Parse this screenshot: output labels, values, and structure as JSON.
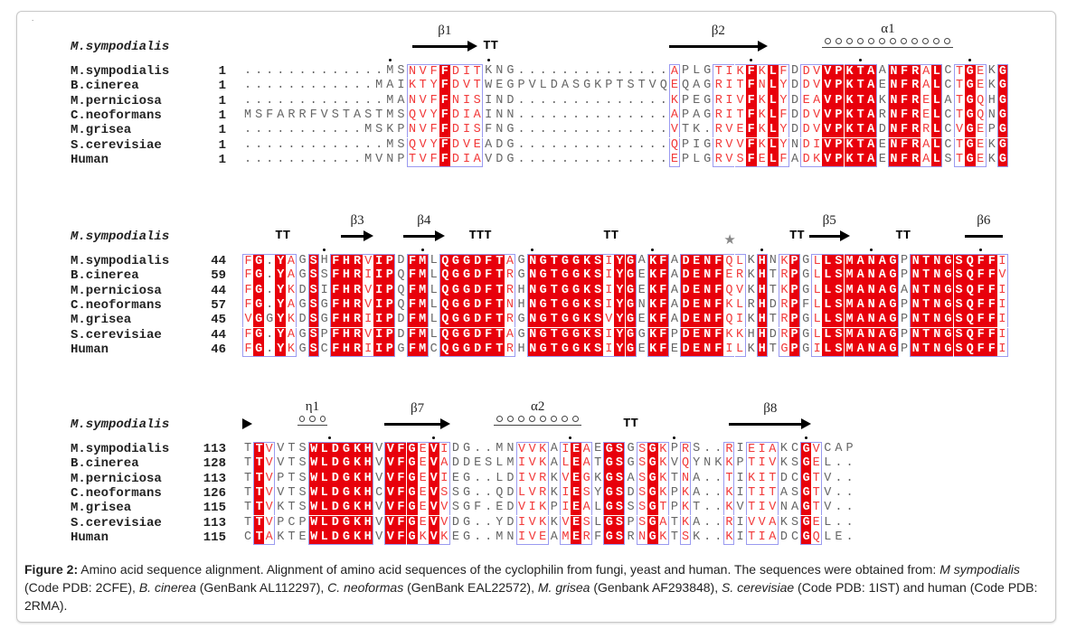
{
  "figure": {
    "corner_mark": ".",
    "header_species": "M.sympodialis",
    "colors": {
      "identical_bg": "#e8000b",
      "similar_text": "#f23a3a",
      "box": "#9a9af0"
    },
    "blocks": [
      {
        "rows": [
          {
            "name": "M.sympodialis",
            "start": "1",
            "seq": ".............MSNVFFDITKNG..............APLGTIKFKLFDDVVPKTAANFRALCTGEKG"
          },
          {
            "name": "B.cinerea",
            "start": "1",
            "seq": "............MAIKTYFDVTWEGPVLDASGKPTSTVQEQAGRITFNLYDDVVPKTAENFRALCTGEKG"
          },
          {
            "name": "M.perniciosa",
            "start": "1",
            "seq": ".............MANVFFNISIND..............KPEGRIVFKLYDEAVPKTAKNFRELATGQHG"
          },
          {
            "name": "C.neoformans",
            "start": "1",
            "seq": "MSFARRFVSTASTMSQVYFDIAINN..............APAGRITFKLFDDVVPKTARNFRELCTGQNG"
          },
          {
            "name": "M.grisea",
            "start": "1",
            "seq": "...........MSKPNVFFDISFNG..............VTK.RVEFKLYDDVVPKTADNFRRLCVGEPG"
          },
          {
            "name": "S.cerevisiae",
            "start": "1",
            "seq": ".............MSQVYFDVEADG..............QPIGRVVFKLYNDIVPKTAENFRALCTGEKG"
          },
          {
            "name": "Human",
            "start": "1",
            "seq": "...........MVNPTVFFDIAVDG..............EPLGRVSFELFADKVPKTAENFRALSTGEKG"
          }
        ],
        "mask": "ppppppppppppppptttRtttppppppppppppppppptppptttRtRtpttRRRRRpRRRtRptRtpR",
        "structure": [
          {
            "type": "arrow",
            "label": "β1",
            "start": 15.5,
            "end": 21.5
          },
          {
            "type": "turn",
            "label": "TT",
            "start": 22
          },
          {
            "type": "arrow",
            "label": "β2",
            "start": 39,
            "end": 48
          },
          {
            "type": "helix",
            "label": "α1",
            "start": 53,
            "end": 65
          },
          {
            "type": "dot",
            "start": 13
          },
          {
            "type": "dot",
            "start": 22
          },
          {
            "type": "dot",
            "start": 46
          },
          {
            "type": "dot",
            "start": 56
          },
          {
            "type": "dot",
            "start": 66
          }
        ]
      },
      {
        "rows": [
          {
            "name": "M.sympodialis",
            "start": "44",
            "seq": "FG.YAGSHFHRVIPDFMLQGGDFTAGNGTGGKSIYGAKFADENFQLKHNKPGLLSMANAGPNTNGSQFFI"
          },
          {
            "name": "B.cinerea",
            "start": "59",
            "seq": "FG.YAGSSFHRIIPQFMLQGGDFTRGNGTGGKSIYGEKFADENFERKHTRPGLLSMANAGPNTNGSQFFV"
          },
          {
            "name": "M.perniciosa",
            "start": "44",
            "seq": "FG.YKDSIFHRVIPQFMLQGGDFTRHNGTGGKSIYGEKFADENFQVKHTKPGLLSMANAGANTNGSQFFI"
          },
          {
            "name": "C.neoformans",
            "start": "57",
            "seq": "FG.YAGSGFHRVIPQFMLQGGDFTNHNGTGGKSIYGNKFADENFKLRHDRPFLLSMANAGPNTNGSQFFI"
          },
          {
            "name": "M.grisea",
            "start": "45",
            "seq": "VGGYKDSGFHRIIPDFMLQGGDFTRGNGTGGKSVYGEKFADENFQIKHTRPGLLSMANAGPNTNGSQFFI"
          },
          {
            "name": "S.cerevisiae",
            "start": "44",
            "seq": "FG.YAGSPFHRVIPDFMLQGGDFTAGNGTGGKSIYGGKFPDENFKKHHDRPGLLSMANAGPNTNGSQFFI"
          },
          {
            "name": "Human",
            "start": "46",
            "seq": "FG.YKGSCFHRIIPGFMCQGGDFTRHNGTGGKSIYGEKFEDENFILKHTGPGILSMANAGPNTNGSQFFI"
          }
        ],
        "mask": "tRbRtpRpRRRtRRpRRpRRRRRRtpRRRRRRRtRRpRRpRRRRttpRptRptRRRRRRRpRRRRRRRRt",
        "structure": [
          {
            "type": "turn",
            "label": "TT",
            "start": 3
          },
          {
            "type": "arrow",
            "label": "β3",
            "start": 9,
            "end": 12
          },
          {
            "type": "arrow",
            "label": "β4",
            "start": 14.7,
            "end": 18.5
          },
          {
            "type": "turn",
            "label": "TTT",
            "start": 20.7
          },
          {
            "type": "turn",
            "label": "TT",
            "start": 33
          },
          {
            "type": "star",
            "start": 44
          },
          {
            "type": "turn",
            "label": "TT",
            "start": 50
          },
          {
            "type": "arrow",
            "label": "β5",
            "start": 51.8,
            "end": 55.5
          },
          {
            "type": "turn",
            "label": "TT",
            "start": 59.7
          },
          {
            "type": "bar",
            "label": "β6",
            "start": 66,
            "end": 69.5
          },
          {
            "type": "dot",
            "start": 7
          },
          {
            "type": "dot",
            "start": 16
          },
          {
            "type": "dot",
            "start": 26
          },
          {
            "type": "dot",
            "start": 37
          },
          {
            "type": "dot",
            "start": 47
          },
          {
            "type": "dot",
            "start": 57
          },
          {
            "type": "dot",
            "start": 67
          }
        ]
      },
      {
        "rows": [
          {
            "name": "M.sympodialis",
            "start": "113",
            "seq": "TTVVTSWLDGKHVVFGEVIDG..MNVVKAIEAEGSGSGKPRS..RIEIAKCGVCAP"
          },
          {
            "name": "B.cinerea",
            "start": "128",
            "seq": "TTVVTSWLDGKHVVFGEVADDESLMIVKALEATGSGSGKVQYNKKPTIVKSGEL.."
          },
          {
            "name": "M.perniciosa",
            "start": "113",
            "seq": "TTVPTSWLDGKHVVFGEVIEG..LDIVRKVEGKGSASGKTNA..TIKITDCGTV.."
          },
          {
            "name": "C.neoformans",
            "start": "126",
            "seq": "TTVVTSWLDGKHCVFGEVSSG..QDLVRKIESYGSDSGKPKA..KITITASGTV.."
          },
          {
            "name": "M.grisea",
            "start": "115",
            "seq": "TTVKTSWLDGKHVVFGEVVSGF.EDVIKPIEALGSSSGTPKT..KVTIVNAGTV.."
          },
          {
            "name": "S.cerevisiae",
            "start": "113",
            "seq": "TTVPCPWLDGKHVVFGEVVDG..YDIVKKVESLGSPSGATKA..RIVVAKSGEL.."
          },
          {
            "name": "Human",
            "start": "115",
            "seq": "CTAKTEWLDGKHVVFGKVKEG..MNIVEAMERFGSRNGKTSK..KITIADCGQLE."
          }
        ],
        "mask": "pRtpppRRRRRRpRRRtRtpppppptttptRtpRRptRtptppptptttppRtppp",
        "structure": [
          {
            "type": "arrowhead",
            "start": 0
          },
          {
            "type": "helix",
            "label": "η1",
            "start": 5,
            "end": 7.8
          },
          {
            "type": "arrow",
            "label": "β7",
            "start": 13,
            "end": 19
          },
          {
            "type": "helix",
            "label": "α2",
            "start": 23,
            "end": 31
          },
          {
            "type": "turn",
            "label": "TT",
            "start": 34.8
          },
          {
            "type": "arrow",
            "label": "β8",
            "start": 44.5,
            "end": 52
          },
          {
            "type": "dot",
            "start": 7.5
          },
          {
            "type": "dot",
            "start": 17
          },
          {
            "type": "dot",
            "start": 29.5
          },
          {
            "type": "dot",
            "start": 39
          },
          {
            "type": "dot",
            "start": 51
          }
        ]
      }
    ]
  },
  "caption": {
    "segments": [
      {
        "style": "b",
        "text": "Figure 2:"
      },
      {
        "style": "n",
        "text": " Amino acid sequence alignment. Alignment of amino acid sequences of the cyclophilin from fungi, yeast and human. The sequences were obtained from: "
      },
      {
        "style": "i",
        "text": "M sympodialis"
      },
      {
        "style": "n",
        "text": " (Code PDB: 2CFE), "
      },
      {
        "style": "i",
        "text": "B. cinerea"
      },
      {
        "style": "n",
        "text": " (GenBank AL112297), "
      },
      {
        "style": "i",
        "text": "C. neoformas"
      },
      {
        "style": "n",
        "text": " (GenBank EAL22572), "
      },
      {
        "style": "i",
        "text": "M. grisea"
      },
      {
        "style": "n",
        "text": " (Genbank AF293848), "
      },
      {
        "style": "i",
        "text": "S. cerevisiae"
      },
      {
        "style": "n",
        "text": " (Code PDB: 1IST) and human (Code PDB: 2RMA)."
      }
    ]
  }
}
